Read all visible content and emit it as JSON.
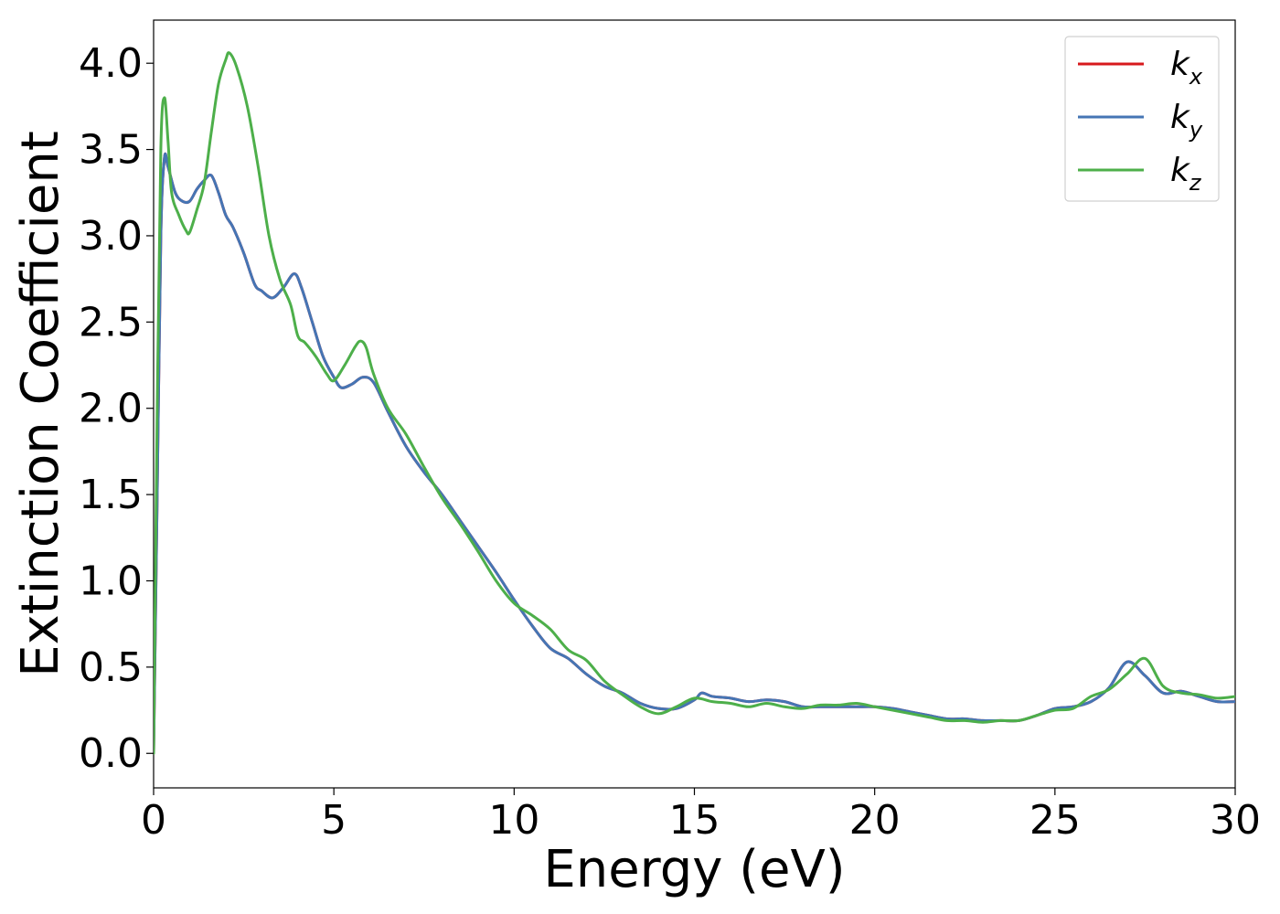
{
  "chart_data": {
    "type": "line",
    "title": "",
    "xlabel": "Energy (eV)",
    "ylabel": "Extinction Coefficient",
    "xlim": [
      0,
      30
    ],
    "ylim": [
      -0.2,
      4.25
    ],
    "xticks": [
      0,
      5,
      10,
      15,
      20,
      25,
      30
    ],
    "xtick_labels": [
      "0",
      "5",
      "10",
      "15",
      "20",
      "25",
      "30"
    ],
    "yticks": [
      0.0,
      0.5,
      1.0,
      1.5,
      2.0,
      2.5,
      3.0,
      3.5,
      4.0
    ],
    "ytick_labels": [
      "0.0",
      "0.5",
      "1.0",
      "1.5",
      "2.0",
      "2.5",
      "3.0",
      "3.5",
      "4.0"
    ],
    "grid": false,
    "legend_position": "upper right",
    "series": [
      {
        "name": "k",
        "subscript": "x",
        "color": "#d7191c",
        "x": [
          0,
          0.1,
          0.2,
          0.3,
          0.4,
          0.6,
          0.8,
          1.0,
          1.2,
          1.4,
          1.6,
          1.8,
          2.0,
          2.2,
          2.5,
          2.8,
          3.0,
          3.3,
          3.6,
          3.9,
          4.1,
          4.4,
          4.7,
          5.0,
          5.2,
          5.5,
          5.8,
          6.1,
          6.5,
          7.0,
          7.5,
          8.0,
          8.5,
          9.0,
          9.5,
          10.0,
          10.5,
          11.0,
          11.5,
          12.0,
          12.5,
          13.0,
          13.5,
          14.0,
          14.5,
          15.0,
          15.2,
          15.5,
          16.0,
          16.5,
          17.0,
          17.5,
          18.0,
          18.5,
          19.0,
          19.5,
          20.0,
          20.5,
          21.0,
          21.5,
          22.0,
          22.5,
          23.0,
          23.5,
          24.0,
          24.5,
          25.0,
          25.5,
          26.0,
          26.5,
          27.0,
          27.5,
          28.0,
          28.5,
          29.0,
          29.5,
          30.0
        ],
        "y": [
          0.0,
          1.5,
          3.0,
          3.45,
          3.4,
          3.25,
          3.2,
          3.2,
          3.27,
          3.32,
          3.35,
          3.25,
          3.12,
          3.05,
          2.9,
          2.72,
          2.68,
          2.64,
          2.7,
          2.78,
          2.7,
          2.5,
          2.3,
          2.18,
          2.12,
          2.14,
          2.18,
          2.15,
          1.98,
          1.78,
          1.63,
          1.5,
          1.35,
          1.2,
          1.05,
          0.89,
          0.74,
          0.61,
          0.55,
          0.46,
          0.39,
          0.35,
          0.29,
          0.26,
          0.26,
          0.31,
          0.35,
          0.33,
          0.32,
          0.3,
          0.31,
          0.3,
          0.27,
          0.27,
          0.27,
          0.27,
          0.27,
          0.26,
          0.24,
          0.22,
          0.2,
          0.2,
          0.19,
          0.19,
          0.19,
          0.22,
          0.26,
          0.27,
          0.3,
          0.38,
          0.53,
          0.45,
          0.35,
          0.36,
          0.33,
          0.3,
          0.3
        ]
      },
      {
        "name": "k",
        "subscript": "y",
        "color": "#4575b4",
        "x": [
          0,
          0.1,
          0.2,
          0.3,
          0.4,
          0.6,
          0.8,
          1.0,
          1.2,
          1.4,
          1.6,
          1.8,
          2.0,
          2.2,
          2.5,
          2.8,
          3.0,
          3.3,
          3.6,
          3.9,
          4.1,
          4.4,
          4.7,
          5.0,
          5.2,
          5.5,
          5.8,
          6.1,
          6.5,
          7.0,
          7.5,
          8.0,
          8.5,
          9.0,
          9.5,
          10.0,
          10.5,
          11.0,
          11.5,
          12.0,
          12.5,
          13.0,
          13.5,
          14.0,
          14.5,
          15.0,
          15.2,
          15.5,
          16.0,
          16.5,
          17.0,
          17.5,
          18.0,
          18.5,
          19.0,
          19.5,
          20.0,
          20.5,
          21.0,
          21.5,
          22.0,
          22.5,
          23.0,
          23.5,
          24.0,
          24.5,
          25.0,
          25.5,
          26.0,
          26.5,
          27.0,
          27.5,
          28.0,
          28.5,
          29.0,
          29.5,
          30.0
        ],
        "y": [
          0.0,
          1.5,
          3.0,
          3.45,
          3.4,
          3.25,
          3.2,
          3.2,
          3.27,
          3.32,
          3.35,
          3.25,
          3.12,
          3.05,
          2.9,
          2.72,
          2.68,
          2.64,
          2.7,
          2.78,
          2.7,
          2.5,
          2.3,
          2.18,
          2.12,
          2.14,
          2.18,
          2.15,
          1.98,
          1.78,
          1.63,
          1.5,
          1.35,
          1.2,
          1.05,
          0.89,
          0.74,
          0.61,
          0.55,
          0.46,
          0.39,
          0.35,
          0.29,
          0.26,
          0.26,
          0.31,
          0.35,
          0.33,
          0.32,
          0.3,
          0.31,
          0.3,
          0.27,
          0.27,
          0.27,
          0.27,
          0.27,
          0.26,
          0.24,
          0.22,
          0.2,
          0.2,
          0.19,
          0.19,
          0.19,
          0.22,
          0.26,
          0.27,
          0.3,
          0.38,
          0.53,
          0.45,
          0.35,
          0.36,
          0.33,
          0.3,
          0.3
        ]
      },
      {
        "name": "k",
        "subscript": "z",
        "color": "#4daf4a",
        "x": [
          0,
          0.1,
          0.2,
          0.3,
          0.4,
          0.5,
          0.7,
          0.9,
          1.0,
          1.2,
          1.4,
          1.6,
          1.8,
          2.0,
          2.1,
          2.3,
          2.6,
          2.9,
          3.2,
          3.5,
          3.8,
          4.0,
          4.2,
          4.5,
          4.8,
          5.0,
          5.3,
          5.6,
          5.75,
          5.9,
          6.1,
          6.5,
          7.0,
          7.5,
          8.0,
          8.5,
          9.0,
          9.5,
          10.0,
          10.5,
          11.0,
          11.5,
          12.0,
          12.5,
          13.0,
          13.5,
          14.0,
          14.5,
          15.0,
          15.5,
          16.0,
          16.5,
          17.0,
          17.5,
          18.0,
          18.5,
          19.0,
          19.5,
          20.0,
          20.5,
          21.0,
          21.5,
          22.0,
          22.5,
          23.0,
          23.5,
          24.0,
          24.5,
          25.0,
          25.5,
          26.0,
          26.5,
          27.0,
          27.5,
          28.0,
          28.5,
          29.0,
          29.5,
          30.0
        ],
        "y": [
          0.0,
          2.0,
          3.5,
          3.8,
          3.55,
          3.25,
          3.12,
          3.03,
          3.02,
          3.15,
          3.3,
          3.6,
          3.88,
          4.02,
          4.06,
          3.98,
          3.75,
          3.4,
          3.0,
          2.75,
          2.6,
          2.42,
          2.38,
          2.3,
          2.2,
          2.16,
          2.25,
          2.36,
          2.39,
          2.35,
          2.2,
          2.0,
          1.85,
          1.66,
          1.48,
          1.33,
          1.17,
          1.0,
          0.87,
          0.8,
          0.72,
          0.6,
          0.54,
          0.42,
          0.34,
          0.27,
          0.23,
          0.27,
          0.32,
          0.3,
          0.29,
          0.27,
          0.29,
          0.27,
          0.26,
          0.28,
          0.28,
          0.29,
          0.27,
          0.25,
          0.23,
          0.21,
          0.19,
          0.19,
          0.18,
          0.19,
          0.19,
          0.22,
          0.25,
          0.26,
          0.33,
          0.37,
          0.46,
          0.55,
          0.39,
          0.35,
          0.34,
          0.32,
          0.33
        ]
      }
    ]
  }
}
